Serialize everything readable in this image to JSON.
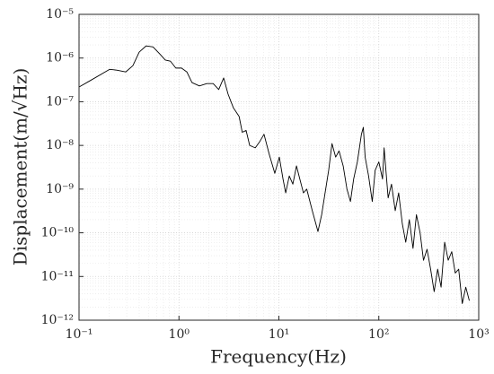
{
  "chart_data": {
    "type": "line",
    "xlabel": "Frequency(Hz)",
    "ylabel": "Displacement(m/√Hz)",
    "xscale": "log",
    "yscale": "log",
    "grid": true,
    "minor_grid": true,
    "xlim": [
      0.1,
      1000
    ],
    "ylim": [
      1e-12,
      1e-05
    ],
    "xticks": [
      {
        "value": 0.1,
        "label": "10⁻¹"
      },
      {
        "value": 1,
        "label": "10⁰"
      },
      {
        "value": 10,
        "label": "10¹"
      },
      {
        "value": 100,
        "label": "10²"
      },
      {
        "value": 1000,
        "label": "10³"
      }
    ],
    "yticks": [
      {
        "value": 1e-12,
        "label": "10⁻¹²"
      },
      {
        "value": 1e-11,
        "label": "10⁻¹¹"
      },
      {
        "value": 1e-10,
        "label": "10⁻¹⁰"
      },
      {
        "value": 1e-09,
        "label": "10⁻⁹"
      },
      {
        "value": 1e-08,
        "label": "10⁻⁸"
      },
      {
        "value": 1e-07,
        "label": "10⁻⁷"
      },
      {
        "value": 1e-06,
        "label": "10⁻⁶"
      },
      {
        "value": 1e-05,
        "label": "10⁻⁵"
      }
    ],
    "x": [
      0.1,
      0.128,
      0.202,
      0.238,
      0.293,
      0.346,
      0.4,
      0.47,
      0.55,
      0.64,
      0.73,
      0.82,
      0.93,
      1.06,
      1.2,
      1.35,
      1.6,
      1.9,
      2.2,
      2.5,
      2.8,
      3.1,
      3.5,
      4.0,
      4.3,
      4.7,
      5.1,
      5.8,
      6.4,
      7.1,
      8.0,
      9.1,
      10.1,
      11,
      11.7,
      12.7,
      13.8,
      15,
      16.2,
      17.6,
      19,
      21.6,
      24.6,
      26.8,
      29,
      31.5,
      34,
      37,
      40,
      44,
      48,
      52,
      56,
      61,
      67,
      70,
      73,
      79,
      86,
      92,
      100,
      109,
      113,
      124,
      134,
      146,
      158,
      172,
      186,
      202,
      220,
      238,
      259,
      280,
      304,
      330,
      358,
      388,
      420,
      456,
      495,
      537,
      582,
      630,
      684,
      742,
      805
    ],
    "series": [
      {
        "color": "#000000",
        "values": [
          2.17e-07,
          3e-07,
          5.5e-07,
          5.3e-07,
          4.8e-07,
          6.7e-07,
          1.37e-06,
          1.9e-06,
          1.8e-06,
          1.25e-06,
          9e-07,
          8.5e-07,
          5.9e-07,
          5.9e-07,
          4.8e-07,
          2.75e-07,
          2.3e-07,
          2.6e-07,
          2.6e-07,
          1.9e-07,
          3.5e-07,
          1.5e-07,
          7.3e-08,
          4.6e-08,
          2e-08,
          2.2e-08,
          1e-08,
          8.8e-09,
          1.2e-08,
          1.8e-08,
          6.3e-09,
          2.3e-09,
          5.4e-09,
          1.7e-09,
          8.2e-10,
          2e-09,
          1.3e-09,
          3.4e-09,
          1.7e-09,
          8.2e-10,
          1e-09,
          3.2e-10,
          1.07e-10,
          2.6e-10,
          8.2e-10,
          2.7e-09,
          1.1e-08,
          5.4e-09,
          7.5e-09,
          3.4e-09,
          1e-09,
          5.2e-10,
          1.7e-09,
          4.2e-09,
          1.8e-08,
          2.6e-08,
          5.4e-09,
          2e-09,
          5.2e-10,
          2.7e-09,
          4.2e-09,
          1.7e-09,
          8.8e-09,
          6.3e-10,
          1.3e-09,
          3.2e-10,
          8.2e-10,
          1.6e-10,
          6.1e-11,
          2e-10,
          4.4e-11,
          2.6e-10,
          1e-10,
          2.35e-11,
          4.2e-11,
          1.47e-11,
          4.5e-12,
          1.47e-11,
          5.7e-12,
          6.1e-11,
          2.35e-11,
          3.7e-11,
          1.2e-11,
          1.47e-11,
          2.4e-12,
          5.7e-12,
          2.8e-12
        ]
      }
    ]
  }
}
